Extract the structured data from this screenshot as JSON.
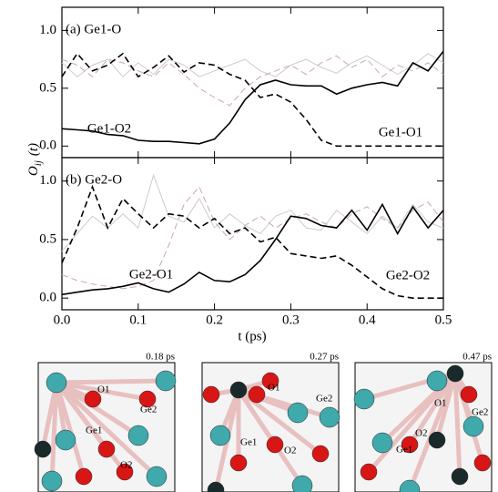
{
  "chart_data": [
    {
      "type": "line",
      "title": "(a) Ge1-O",
      "ylabel": [
        "O",
        "ij",
        "(t)"
      ],
      "x": [
        0,
        0.02,
        0.04,
        0.06,
        0.08,
        0.1,
        0.12,
        0.14,
        0.16,
        0.18,
        0.2,
        0.22,
        0.24,
        0.26,
        0.28,
        0.3,
        0.32,
        0.34,
        0.36,
        0.38,
        0.4,
        0.42,
        0.44,
        0.46,
        0.48,
        0.5
      ],
      "series": [
        {
          "color": "#cccccc",
          "dashed": false,
          "values": [
            0.72,
            0.6,
            0.7,
            0.75,
            0.6,
            0.72,
            0.62,
            0.75,
            0.7,
            0.6,
            0.65,
            0.7,
            0.75,
            0.65,
            0.6,
            0.7,
            0.75,
            0.68,
            0.63,
            0.72,
            0.78,
            0.7,
            0.62,
            0.7,
            0.8,
            0.72
          ]
        },
        {
          "color": "#c9a9ad",
          "dashed": true,
          "values": [
            0.75,
            0.7,
            0.6,
            0.75,
            0.72,
            0.65,
            0.6,
            0.72,
            0.62,
            0.5,
            0.42,
            0.35,
            0.5,
            0.6,
            0.65,
            0.7,
            0.62,
            0.72,
            0.78,
            0.68,
            0.75,
            0.6,
            0.7,
            0.65,
            0.72,
            0.62
          ]
        },
        {
          "name": "Ge1-O2",
          "color": "#000000",
          "dashed": false,
          "values": [
            0.15,
            0.14,
            0.13,
            0.1,
            0.09,
            0.05,
            0.04,
            0.04,
            0.03,
            0.02,
            0.06,
            0.2,
            0.4,
            0.53,
            0.57,
            0.53,
            0.52,
            0.52,
            0.45,
            0.5,
            0.53,
            0.55,
            0.52,
            0.72,
            0.65,
            0.82
          ]
        },
        {
          "name": "Ge1-O1",
          "color": "#000000",
          "dashed": true,
          "values": [
            0.6,
            0.8,
            0.65,
            0.7,
            0.8,
            0.6,
            0.68,
            0.78,
            0.64,
            0.72,
            0.7,
            0.62,
            0.57,
            0.42,
            0.45,
            0.38,
            0.23,
            0.05,
            0,
            0,
            0,
            0,
            0,
            0,
            0,
            0
          ]
        }
      ],
      "ylim": [
        -0.1,
        1.2
      ],
      "yticks": [
        {
          "value": 0,
          "label": "0.0"
        },
        0.5,
        {
          "value": 1,
          "label": "1.0"
        }
      ]
    },
    {
      "type": "line",
      "title": "(b) Ge2-O",
      "xlabel": "t (ps)",
      "x": [
        0,
        0.02,
        0.04,
        0.06,
        0.08,
        0.1,
        0.12,
        0.14,
        0.16,
        0.18,
        0.2,
        0.22,
        0.24,
        0.26,
        0.28,
        0.3,
        0.32,
        0.34,
        0.36,
        0.38,
        0.4,
        0.42,
        0.44,
        0.46,
        0.48,
        0.5
      ],
      "series": [
        {
          "color": "#cccccc",
          "dashed": false,
          "values": [
            0.4,
            0.55,
            0.7,
            0.6,
            0.72,
            0.6,
            1.05,
            0.7,
            0.65,
            0.85,
            0.6,
            0.72,
            0.62,
            0.55,
            0.7,
            0.75,
            0.6,
            0.58,
            0.75,
            0.65,
            0.55,
            0.7,
            0.6,
            0.8,
            0.65,
            0.6
          ]
        },
        {
          "color": "#c9a9ad",
          "dashed": true,
          "values": [
            0.2,
            0.15,
            0.12,
            0.1,
            0.08,
            0.1,
            0.15,
            0.45,
            0.8,
            0.95,
            0.65,
            0.5,
            0.62,
            0.7,
            0.6,
            0.68,
            0.72,
            0.65,
            0.6,
            0.72,
            0.78,
            0.68,
            0.6,
            0.75,
            0.82,
            0.65
          ]
        },
        {
          "name": "Ge2-O1",
          "color": "#000000",
          "dashed": false,
          "values": [
            0.03,
            0.05,
            0.07,
            0.08,
            0.1,
            0.13,
            0.08,
            0.05,
            0.12,
            0.22,
            0.15,
            0.14,
            0.2,
            0.32,
            0.5,
            0.7,
            0.68,
            0.62,
            0.6,
            0.75,
            0.58,
            0.8,
            0.55,
            0.78,
            0.6,
            0.75
          ]
        },
        {
          "name": "Ge2-O2",
          "color": "#000000",
          "dashed": true,
          "values": [
            0.3,
            0.6,
            0.95,
            0.6,
            0.85,
            0.72,
            0.6,
            0.72,
            0.7,
            0.6,
            0.68,
            0.55,
            0.6,
            0.48,
            0.52,
            0.38,
            0.36,
            0.34,
            0.36,
            0.28,
            0.18,
            0.08,
            0.02,
            0,
            0,
            0
          ]
        }
      ],
      "xlim": [
        0,
        0.5
      ],
      "xticks": [
        {
          "value": 0,
          "label": "0.0"
        },
        0.1,
        0.2,
        0.3,
        0.4,
        0.5
      ],
      "ylim": [
        -0.1,
        1.2
      ],
      "yticks": [
        {
          "value": 0,
          "label": "0.0"
        },
        0.5,
        {
          "value": 1,
          "label": "1.0"
        }
      ]
    }
  ],
  "snapshots": [
    {
      "time": "0.18 ps",
      "labels": [
        "O1",
        "Ge2",
        "Ge1",
        "O2"
      ]
    },
    {
      "time": "0.27 ps",
      "labels": [
        "O1",
        "Ge2",
        "Ge1",
        "O2"
      ]
    },
    {
      "time": "0.47 ps",
      "labels": [
        "O1",
        "Ge2",
        "O2",
        "Ge1"
      ]
    }
  ]
}
